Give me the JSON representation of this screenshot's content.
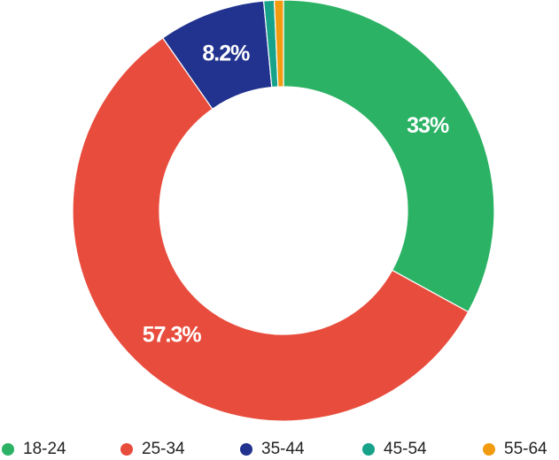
{
  "chart_data": {
    "type": "pie",
    "variant": "donut",
    "categories": [
      "18-24",
      "25-34",
      "35-44",
      "45-54",
      "55-64"
    ],
    "values": [
      33,
      57.3,
      8.2,
      0.8,
      0.7
    ],
    "data_labels": [
      "33%",
      "57.3%",
      "8.2%",
      "",
      ""
    ],
    "colors": [
      "#2bb264",
      "#e84c3d",
      "#21338e",
      "#17a389",
      "#f29b11"
    ],
    "legend_position": "bottom"
  }
}
